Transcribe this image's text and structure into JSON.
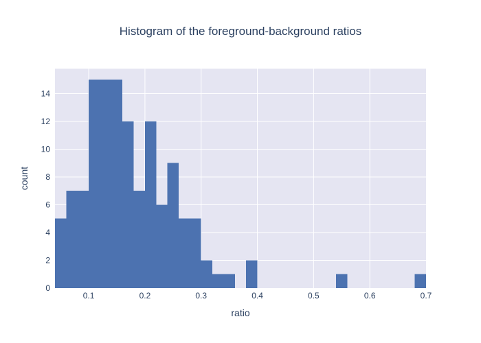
{
  "chart_data": {
    "type": "bar",
    "title": "Histogram of the foreground-background ratios",
    "xlabel": "ratio",
    "ylabel": "count",
    "xlim": [
      0.04,
      0.7
    ],
    "ylim": [
      0,
      15.8
    ],
    "bin_width": 0.02,
    "x_ticks": [
      0.1,
      0.2,
      0.3,
      0.4,
      0.5,
      0.6,
      0.7
    ],
    "x_tick_labels": [
      "0.1",
      "0.2",
      "0.3",
      "0.4",
      "0.5",
      "0.6",
      "0.7"
    ],
    "y_ticks": [
      0,
      2,
      4,
      6,
      8,
      10,
      12,
      14
    ],
    "y_tick_labels": [
      "0",
      "2",
      "4",
      "6",
      "8",
      "10",
      "12",
      "14"
    ],
    "grid": true,
    "bar_color": "#4c72b0",
    "plot_background": "#e5e5f2",
    "bins": [
      {
        "x0": 0.04,
        "x1": 0.06,
        "count": 5
      },
      {
        "x0": 0.06,
        "x1": 0.08,
        "count": 7
      },
      {
        "x0": 0.08,
        "x1": 0.1,
        "count": 7
      },
      {
        "x0": 0.1,
        "x1": 0.12,
        "count": 15
      },
      {
        "x0": 0.12,
        "x1": 0.14,
        "count": 15
      },
      {
        "x0": 0.14,
        "x1": 0.16,
        "count": 15
      },
      {
        "x0": 0.16,
        "x1": 0.18,
        "count": 12
      },
      {
        "x0": 0.18,
        "x1": 0.2,
        "count": 7
      },
      {
        "x0": 0.2,
        "x1": 0.22,
        "count": 12
      },
      {
        "x0": 0.22,
        "x1": 0.24,
        "count": 6
      },
      {
        "x0": 0.24,
        "x1": 0.26,
        "count": 9
      },
      {
        "x0": 0.26,
        "x1": 0.28,
        "count": 5
      },
      {
        "x0": 0.28,
        "x1": 0.3,
        "count": 5
      },
      {
        "x0": 0.3,
        "x1": 0.32,
        "count": 2
      },
      {
        "x0": 0.32,
        "x1": 0.34,
        "count": 1
      },
      {
        "x0": 0.34,
        "x1": 0.36,
        "count": 1
      },
      {
        "x0": 0.36,
        "x1": 0.38,
        "count": 0
      },
      {
        "x0": 0.38,
        "x1": 0.4,
        "count": 2
      },
      {
        "x0": 0.54,
        "x1": 0.56,
        "count": 1
      },
      {
        "x0": 0.68,
        "x1": 0.7,
        "count": 1
      }
    ]
  }
}
